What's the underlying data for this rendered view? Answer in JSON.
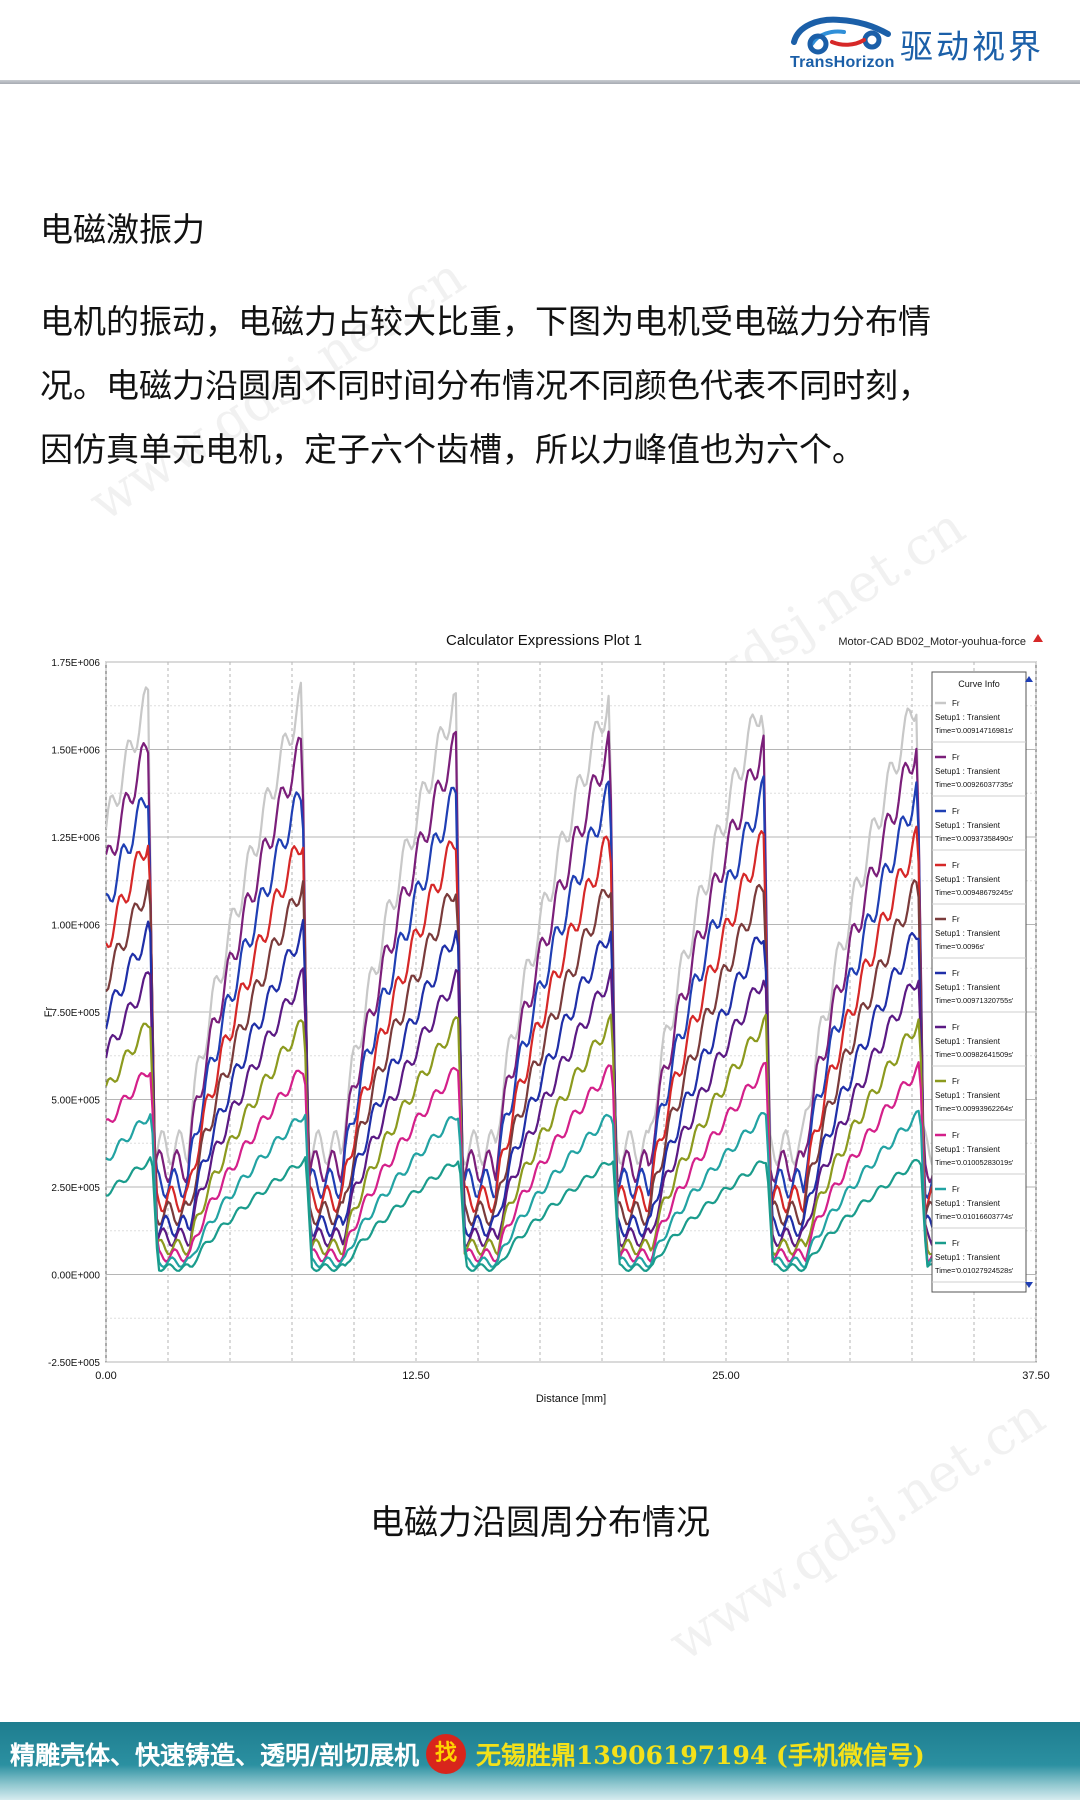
{
  "header": {
    "logo_en": "TransHorizon",
    "logo_cn": "驱动视界",
    "brand_color": "#1b5fa8"
  },
  "section_title": "电磁激振力",
  "paragraph_lines": [
    "电机的振动，电磁力占较大比重，下图为电机受电磁力分布情",
    "况。电磁力沿圆周不同时间分布情况不同颜色代表不同时刻，",
    "因仿真单元电机，定子六个齿槽，所以力峰值也为六个。"
  ],
  "watermark": "www.qdsj.net.cn",
  "caption": "电磁力沿圆周分布情况",
  "chart_data": {
    "type": "line",
    "title": "Calculator Expressions Plot 1",
    "subtitle": "Motor-CAD BD02_Motor-youhua-force",
    "xlabel": "Distance [mm]",
    "ylabel": "Fr",
    "xlim": [
      0,
      37.5
    ],
    "ylim": [
      -250000,
      1750000
    ],
    "x_ticks": [
      0,
      12.5,
      25,
      37.5
    ],
    "x_tick_labels": [
      "0.00",
      "12.50",
      "25.00",
      "37.50"
    ],
    "y_ticks": [
      -250000,
      0,
      250000,
      500000,
      750000,
      1000000,
      1250000,
      1500000,
      1750000
    ],
    "y_tick_labels": [
      "-2.50E+005",
      "0.00E+000",
      "2.50E+005",
      "5.00E+005",
      "7.50E+005",
      "1.00E+006",
      "1.25E+006",
      "1.50E+006",
      "1.75E+006"
    ],
    "grid": true,
    "legend_title": "Curve Info",
    "legend_position": "right",
    "peak_count": 6,
    "peak_x": [
      1.7,
      7.9,
      14.1,
      20.4,
      26.6,
      32.9
    ],
    "peak_value_approx": 1650000,
    "series": [
      {
        "name": "Fr",
        "setup": "Setup1 : Transient",
        "time": "Time='0.00914716981s'",
        "color": "#c8c8c8",
        "scale": 1.0
      },
      {
        "name": "Fr",
        "setup": "Setup1 : Transient",
        "time": "Time='0.00926037735s'",
        "color": "#7b1f7a",
        "scale": 0.92
      },
      {
        "name": "Fr",
        "setup": "Setup1 : Transient",
        "time": "Time='0.00937358490s'",
        "color": "#1f3fb4",
        "scale": 0.84
      },
      {
        "name": "Fr",
        "setup": "Setup1 : Transient",
        "time": "Time='0.00948679245s'",
        "color": "#d62828",
        "scale": 0.76
      },
      {
        "name": "Fr",
        "setup": "Setup1 : Transient",
        "time": "Time='0.0096s'",
        "color": "#7a3b3b",
        "scale": 0.68
      },
      {
        "name": "Fr",
        "setup": "Setup1 : Transient",
        "time": "Time='0.00971320755s'",
        "color": "#1f2fa8",
        "scale": 0.6
      },
      {
        "name": "Fr",
        "setup": "Setup1 : Transient",
        "time": "Time='0.00982641509s'",
        "color": "#5b1a84",
        "scale": 0.52
      },
      {
        "name": "Fr",
        "setup": "Setup1 : Transient",
        "time": "Time='0.00993962264s'",
        "color": "#8c9a1e",
        "scale": 0.44
      },
      {
        "name": "Fr",
        "setup": "Setup1 : Transient",
        "time": "Time='0.01005283019s'",
        "color": "#d4208a",
        "scale": 0.36
      },
      {
        "name": "Fr",
        "setup": "Setup1 : Transient",
        "time": "Time='0.01016603774s'",
        "color": "#22a3a3",
        "scale": 0.28
      },
      {
        "name": "Fr",
        "setup": "Setup1 : Transient",
        "time": "Time='0.01027924528s'",
        "color": "#1a9c8c",
        "scale": 0.2
      }
    ]
  },
  "footer": {
    "left_text": "精雕壳体、快速铸造、透明/剖切展机",
    "badge": "找",
    "right_text": "无锡胜鼎13906197194 (手机微信号)"
  }
}
